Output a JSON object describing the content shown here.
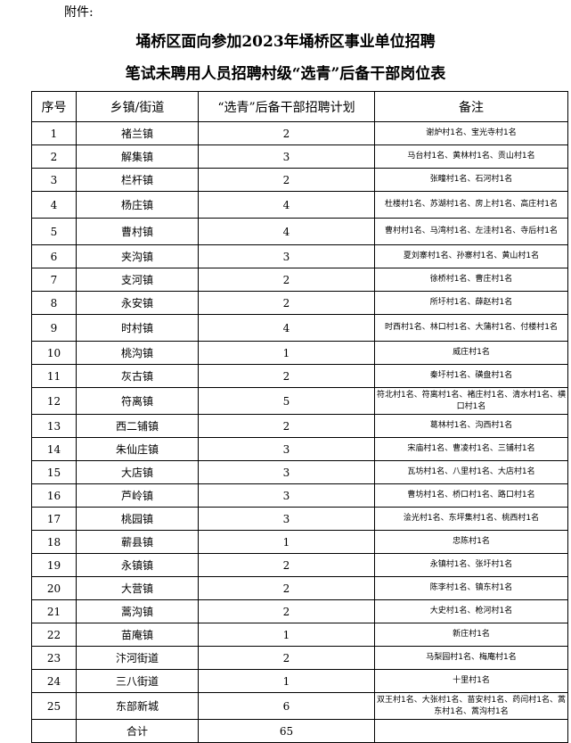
{
  "attachment_label": "附件:",
  "title_line1": "埇桥区面向参加2023年埇桥区事业单位招聘",
  "title_line2": "笔试未聘用人员招聘村级“选青”后备干部岗位表",
  "columns": [
    "序号",
    "乡镇/街道",
    "“选青”后备干部招聘计划",
    "备注"
  ],
  "rows": [
    {
      "no": "1",
      "town": "褚兰镇",
      "plan": "2",
      "note": "谢炉村1名、宝光寺村1名"
    },
    {
      "no": "2",
      "town": "解集镇",
      "plan": "3",
      "note": "马台村1名、黄林村1名、贡山村1名"
    },
    {
      "no": "3",
      "town": "栏杆镇",
      "plan": "2",
      "note": "张疃村1名、石河村1名"
    },
    {
      "no": "4",
      "town": "杨庄镇",
      "plan": "4",
      "note": "杜楼村1名、苏湖村1名、房上村1名、高庄村1名"
    },
    {
      "no": "5",
      "town": "曹村镇",
      "plan": "4",
      "note": "曹村村1名、马湾村1名、左洼村1名、寺后村1名"
    },
    {
      "no": "6",
      "town": "夹沟镇",
      "plan": "3",
      "note": "夏刘寨村1名、孙寨村1名、黄山村1名"
    },
    {
      "no": "7",
      "town": "支河镇",
      "plan": "2",
      "note": "徐桥村1名、曹庄村1名"
    },
    {
      "no": "8",
      "town": "永安镇",
      "plan": "2",
      "note": "所圩村1名、薛赵村1名"
    },
    {
      "no": "9",
      "town": "时村镇",
      "plan": "4",
      "note": "时西村1名、林口村1名、大蒲村1名、付楼村1名"
    },
    {
      "no": "10",
      "town": "桃沟镇",
      "plan": "1",
      "note": "威庄村1名"
    },
    {
      "no": "11",
      "town": "灰古镇",
      "plan": "2",
      "note": "秦圩村1名、磺盘村1名"
    },
    {
      "no": "12",
      "town": "符离镇",
      "plan": "5",
      "note": "符北村1名、符离村1名、褚庄村1名、清水村1名、横口村1名"
    },
    {
      "no": "13",
      "town": "西二铺镇",
      "plan": "2",
      "note": "葛林村1名、沟西村1名"
    },
    {
      "no": "14",
      "town": "朱仙庄镇",
      "plan": "3",
      "note": "宋庙村1名、曹凌村1名、三铺村1名"
    },
    {
      "no": "15",
      "town": "大店镇",
      "plan": "3",
      "note": "瓦坊村1名、八里村1名、大店村1名"
    },
    {
      "no": "16",
      "town": "芦岭镇",
      "plan": "3",
      "note": "曹坊村1名、桥口村1名、路口村1名"
    },
    {
      "no": "17",
      "town": "桃园镇",
      "plan": "3",
      "note": "浍光村1名、东坪集村1名、桃西村1名"
    },
    {
      "no": "18",
      "town": "蕲县镇",
      "plan": "1",
      "note": "忠陈村1名"
    },
    {
      "no": "19",
      "town": "永镇镇",
      "plan": "2",
      "note": "永镇村1名、张圩村1名"
    },
    {
      "no": "20",
      "town": "大营镇",
      "plan": "2",
      "note": "陈李村1名、镇东村1名"
    },
    {
      "no": "21",
      "town": "蒿沟镇",
      "plan": "2",
      "note": "大史村1名、枪河村1名"
    },
    {
      "no": "22",
      "town": "苗庵镇",
      "plan": "1",
      "note": "新庄村1名"
    },
    {
      "no": "23",
      "town": "汴河街道",
      "plan": "2",
      "note": "马梨园村1名、梅庵村1名"
    },
    {
      "no": "24",
      "town": "三八街道",
      "plan": "1",
      "note": "十里村1名"
    },
    {
      "no": "25",
      "town": "东部新城",
      "plan": "6",
      "note": "双王村1名、大张村1名、苗安村1名、药闫村1名、蒿东村1名、蒿沟村1名"
    }
  ],
  "total": {
    "label": "合计",
    "plan": "65",
    "note": ""
  }
}
